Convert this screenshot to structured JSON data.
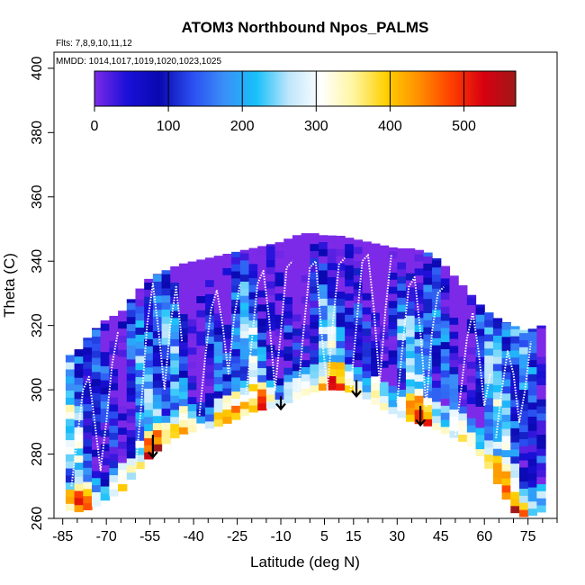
{
  "chart_data": {
    "type": "heatmap",
    "title": "ATOM3 Northbound Npos_PALMS",
    "flights_note": "Flts: 7,8,9,10,11,12",
    "dates_note": "MMDD: 1014,1017,1019,1020,1023,1025",
    "xlabel": "Latitude (deg N)",
    "ylabel": "Theta (C)",
    "xlim": [
      -88,
      85
    ],
    "ylim": [
      260,
      405
    ],
    "x_ticks": [
      -85,
      -70,
      -55,
      -40,
      -25,
      -10,
      5,
      15,
      30,
      45,
      60,
      75
    ],
    "y_ticks": [
      260,
      280,
      300,
      320,
      340,
      360,
      380,
      400
    ],
    "colorbar": {
      "min": 0,
      "max": 570,
      "ticks": [
        0,
        100,
        200,
        300,
        400,
        500
      ],
      "colors": [
        "#7d2ae8",
        "#1a10d8",
        "#0a08b0",
        "#2a4df0",
        "#3a8ff8",
        "#18c0fa",
        "#bfe6fb",
        "#ffffff",
        "#fff5a0",
        "#ffd000",
        "#ff9000",
        "#ff4000",
        "#d80010",
        "#a01818"
      ]
    },
    "floor_profile": {
      "lat": [
        -85,
        -80,
        -75,
        -70,
        -65,
        -60,
        -55,
        -50,
        -45,
        -40,
        -35,
        -30,
        -25,
        -20,
        -15,
        -10,
        -5,
        0,
        5,
        10,
        15,
        20,
        25,
        30,
        35,
        40,
        45,
        50,
        55,
        60,
        65,
        70,
        75,
        78
      ],
      "theta": [
        263,
        262,
        263,
        266,
        268,
        274,
        279,
        283,
        286,
        287,
        288,
        289,
        291,
        293,
        294,
        295,
        297,
        299,
        300,
        300,
        299,
        297,
        294,
        292,
        290,
        289,
        287,
        285,
        283,
        278,
        270,
        262,
        260,
        262
      ]
    },
    "ceiling_profile": {
      "lat": [
        -85,
        -80,
        -75,
        -70,
        -65,
        -60,
        -55,
        -50,
        -45,
        -40,
        -35,
        -30,
        -25,
        -20,
        -15,
        -10,
        -5,
        0,
        5,
        10,
        15,
        20,
        25,
        30,
        35,
        40,
        45,
        50,
        55,
        60,
        65,
        70,
        75,
        78
      ],
      "theta": [
        310,
        312,
        318,
        322,
        324,
        330,
        335,
        337,
        339,
        340,
        341,
        342,
        343,
        344,
        345,
        346,
        348,
        349,
        348,
        348,
        347,
        346,
        345,
        344,
        344,
        343,
        340,
        335,
        330,
        325,
        322,
        320,
        318,
        320
      ]
    },
    "arrows": [
      {
        "lat": -54,
        "theta_top": 286,
        "theta_bottom": 279
      },
      {
        "lat": -10,
        "theta_top": 298,
        "theta_bottom": 294
      },
      {
        "lat": 16,
        "theta_top": 303,
        "theta_bottom": 298
      },
      {
        "lat": 38,
        "theta_top": 295,
        "theta_bottom": 289
      }
    ],
    "flight_tracks": [
      {
        "lat": [
          -60,
          -58,
          -56,
          -54,
          -52,
          -50,
          -48,
          -46,
          -44
        ],
        "theta": [
          275,
          295,
          320,
          333,
          318,
          300,
          320,
          332,
          315
        ]
      },
      {
        "lat": [
          -38,
          -36,
          -34,
          -32,
          -30,
          -28,
          -26,
          -24
        ],
        "theta": [
          292,
          310,
          325,
          331,
          320,
          305,
          323,
          333
        ]
      },
      {
        "lat": [
          -22,
          -20,
          -18,
          -16,
          -14,
          -12,
          -10,
          -8,
          -6
        ],
        "theta": [
          298,
          315,
          333,
          337,
          322,
          300,
          318,
          338,
          340
        ]
      },
      {
        "lat": [
          -4,
          -2,
          0,
          2,
          4,
          6,
          8,
          10,
          12
        ],
        "theta": [
          300,
          320,
          338,
          340,
          318,
          300,
          322,
          339,
          341
        ]
      },
      {
        "lat": [
          14,
          16,
          18,
          20,
          22,
          24,
          26,
          28
        ],
        "theta": [
          300,
          320,
          340,
          342,
          325,
          302,
          325,
          342
        ]
      },
      {
        "lat": [
          30,
          32,
          34,
          36,
          38,
          40,
          42,
          44,
          46
        ],
        "theta": [
          296,
          315,
          332,
          335,
          318,
          295,
          318,
          330,
          332
        ]
      },
      {
        "lat": [
          50,
          52,
          54,
          56,
          58,
          60,
          62
        ],
        "theta": [
          286,
          300,
          316,
          324,
          312,
          295,
          305
        ]
      },
      {
        "lat": [
          -82,
          -80,
          -78,
          -76,
          -74,
          -72,
          -70,
          -68,
          -66
        ],
        "theta": [
          270,
          285,
          300,
          304,
          290,
          275,
          290,
          308,
          318
        ]
      },
      {
        "lat": [
          64,
          66,
          68,
          70,
          72,
          74,
          76
        ],
        "theta": [
          285,
          300,
          312,
          305,
          290,
          300,
          315
        ]
      }
    ]
  }
}
